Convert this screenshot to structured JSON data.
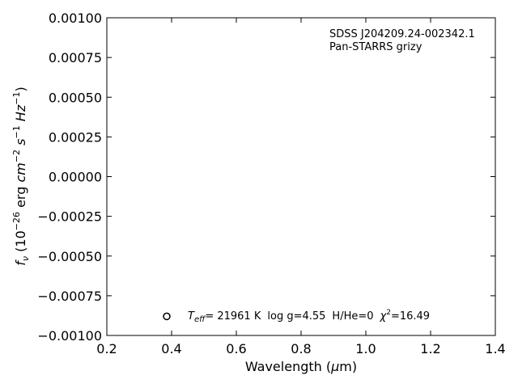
{
  "chart_data": {
    "type": "scatter",
    "title": "",
    "xlabel": "Wavelength (μm)",
    "ylabel": "f_ν (10^−26 erg cm^−2 s^−1 Hz^−1)",
    "xlim": [
      0.2,
      1.4
    ],
    "ylim": [
      -0.001,
      0.001
    ],
    "x_ticks": [
      0.2,
      0.4,
      0.6,
      0.8,
      1.0,
      1.2,
      1.4
    ],
    "x_tick_labels": [
      "0.2",
      "0.4",
      "0.6",
      "0.8",
      "1.0",
      "1.2",
      "1.4"
    ],
    "y_ticks": [
      -0.001,
      -0.00075,
      -0.0005,
      -0.00025,
      0.0,
      0.00025,
      0.0005,
      0.00075,
      0.001
    ],
    "y_tick_labels": [
      "−0.00100",
      "−0.00075",
      "−0.00050",
      "−0.00025",
      "0.00000",
      "0.00025",
      "0.00050",
      "0.00075",
      "0.00100"
    ],
    "grid": false,
    "annotations": {
      "object_name": "SDSS J204209.24-002342.1",
      "survey": "Pan-STARRS grizy"
    },
    "legend": {
      "marker": "open-circle",
      "marker_position": [
        0.385,
        -0.00088
      ],
      "teff_value": "= 21961 K",
      "logg": "log g=4.55",
      "hhe": "H/He=0",
      "chi2_value": "=16.49"
    },
    "series": []
  }
}
